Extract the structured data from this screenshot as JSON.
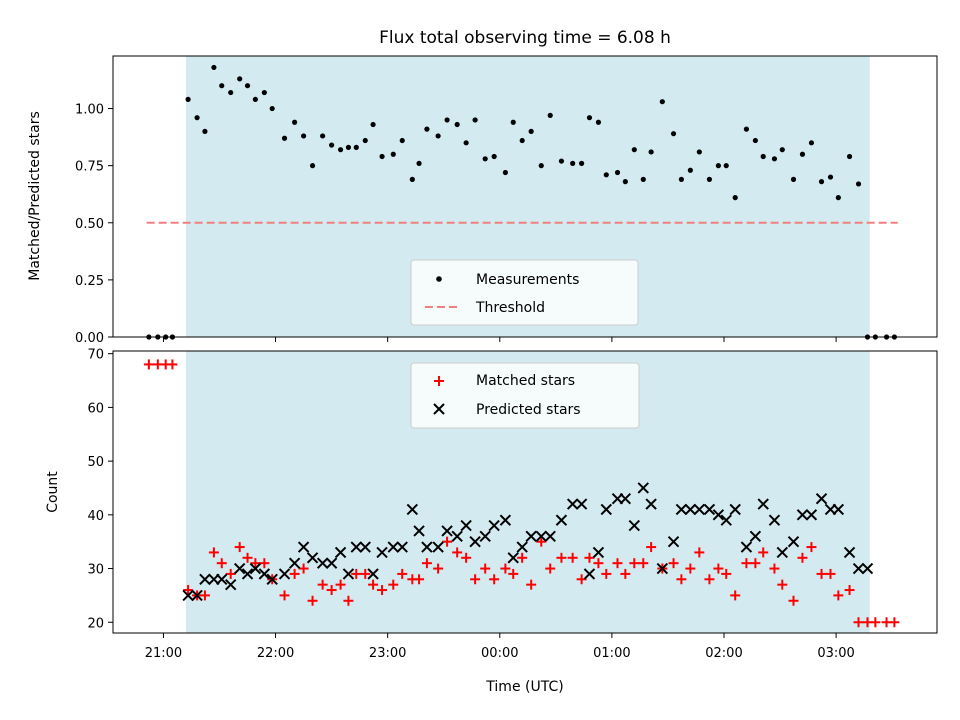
{
  "chart_data": [
    {
      "type": "scatter",
      "title": "Flux total observing time = 6.08 h",
      "ylabel": "Matched/Predicted stars",
      "xlabel": "",
      "ylim": [
        0,
        1.23
      ],
      "yticks": [
        "0.00",
        "0.25",
        "0.50",
        "0.75",
        "1.00"
      ],
      "xticks_hours": [
        21,
        22,
        23,
        24,
        25,
        26,
        27
      ],
      "xlim_hours": [
        20.55,
        27.9
      ],
      "observing_window_hours": [
        21.2,
        27.3
      ],
      "shade_color": "#d3eaf0",
      "threshold": {
        "name": "Threshold",
        "value": 0.5,
        "x_range_hours": [
          20.85,
          27.55
        ],
        "color": "#f08080"
      },
      "legend": [
        "Measurements",
        "Threshold"
      ],
      "legend_position": "lower-center",
      "series": [
        {
          "name": "Measurements",
          "color": "#000000",
          "x_hours": [
            20.87,
            20.95,
            21.02,
            21.08,
            21.22,
            21.3,
            21.37,
            21.45,
            21.52,
            21.6,
            21.68,
            21.75,
            21.82,
            21.9,
            21.97,
            22.08,
            22.17,
            22.25,
            22.33,
            22.42,
            22.5,
            22.58,
            22.65,
            22.72,
            22.8,
            22.87,
            22.95,
            23.05,
            23.13,
            23.22,
            23.28,
            23.35,
            23.45,
            23.53,
            23.62,
            23.7,
            23.78,
            23.87,
            23.95,
            24.05,
            24.12,
            24.2,
            24.28,
            24.37,
            24.45,
            24.55,
            24.65,
            24.73,
            24.8,
            24.88,
            24.95,
            25.05,
            25.12,
            25.2,
            25.28,
            25.35,
            25.45,
            25.55,
            25.62,
            25.7,
            25.78,
            25.87,
            25.95,
            26.02,
            26.1,
            26.2,
            26.28,
            26.35,
            26.45,
            26.52,
            26.62,
            26.7,
            26.78,
            26.87,
            26.95,
            27.02,
            27.12,
            27.2,
            27.28,
            27.35,
            27.45,
            27.52
          ],
          "y": [
            0,
            0,
            0,
            0,
            1.04,
            0.96,
            0.9,
            1.18,
            1.1,
            1.07,
            1.13,
            1.1,
            1.04,
            1.07,
            1.0,
            0.87,
            0.94,
            0.88,
            0.75,
            0.88,
            0.84,
            0.82,
            0.83,
            0.83,
            0.86,
            0.93,
            0.79,
            0.8,
            0.86,
            0.69,
            0.76,
            0.91,
            0.88,
            0.95,
            0.93,
            0.85,
            0.95,
            0.78,
            0.79,
            0.72,
            0.94,
            0.86,
            0.9,
            0.75,
            0.97,
            0.77,
            0.76,
            0.76,
            0.96,
            0.94,
            0.71,
            0.72,
            0.68,
            0.82,
            0.69,
            0.81,
            1.03,
            0.89,
            0.69,
            0.73,
            0.81,
            0.69,
            0.75,
            0.75,
            0.61,
            0.91,
            0.86,
            0.79,
            0.78,
            0.82,
            0.69,
            0.8,
            0.85,
            0.68,
            0.7,
            0.61,
            0.79,
            0.67,
            0,
            0,
            0,
            0
          ]
        }
      ]
    },
    {
      "type": "scatter",
      "title": "",
      "ylabel": "Count",
      "xlabel": "Time (UTC)",
      "ylim": [
        18,
        70.5
      ],
      "yticks": [
        "20",
        "30",
        "40",
        "50",
        "60",
        "70"
      ],
      "xticks": [
        "21:00",
        "22:00",
        "23:00",
        "00:00",
        "01:00",
        "02:00",
        "03:00"
      ],
      "xticks_hours": [
        21,
        22,
        23,
        24,
        25,
        26,
        27
      ],
      "xlim_hours": [
        20.55,
        27.9
      ],
      "observing_window_hours": [
        21.2,
        27.3
      ],
      "legend": [
        "Matched stars",
        "Predicted stars"
      ],
      "legend_position": "top-center",
      "series": [
        {
          "name": "Matched stars",
          "marker": "plus",
          "color": "#ff0000",
          "x_hours": [
            20.87,
            20.95,
            21.02,
            21.08,
            21.22,
            21.3,
            21.37,
            21.45,
            21.52,
            21.6,
            21.68,
            21.75,
            21.82,
            21.9,
            21.97,
            22.08,
            22.17,
            22.25,
            22.33,
            22.42,
            22.5,
            22.58,
            22.65,
            22.72,
            22.8,
            22.87,
            22.95,
            23.05,
            23.13,
            23.22,
            23.28,
            23.35,
            23.45,
            23.53,
            23.62,
            23.7,
            23.78,
            23.87,
            23.95,
            24.05,
            24.12,
            24.2,
            24.28,
            24.37,
            24.45,
            24.55,
            24.65,
            24.73,
            24.8,
            24.88,
            24.95,
            25.05,
            25.12,
            25.2,
            25.28,
            25.35,
            25.45,
            25.55,
            25.62,
            25.7,
            25.78,
            25.87,
            25.95,
            26.02,
            26.1,
            26.2,
            26.28,
            26.35,
            26.45,
            26.52,
            26.62,
            26.7,
            26.78,
            26.87,
            26.95,
            27.02,
            27.12,
            27.2,
            27.28,
            27.35,
            27.45,
            27.52
          ],
          "y": [
            68,
            68,
            68,
            68,
            26,
            25,
            25,
            33,
            31,
            29,
            34,
            32,
            31,
            31,
            28,
            25,
            29,
            30,
            24,
            27,
            26,
            27,
            24,
            29,
            29,
            27,
            26,
            27,
            29,
            28,
            28,
            31,
            30,
            35,
            33,
            32,
            28,
            30,
            28,
            30,
            29,
            32,
            27,
            35,
            30,
            32,
            32,
            28,
            32,
            31,
            29,
            31,
            29,
            31,
            31,
            34,
            30,
            31,
            28,
            30,
            33,
            28,
            30,
            29,
            25,
            31,
            31,
            33,
            30,
            27,
            24,
            32,
            34,
            29,
            29,
            25,
            26,
            20,
            20,
            20,
            20,
            20
          ]
        },
        {
          "name": "Predicted stars",
          "marker": "x",
          "color": "#000000",
          "x_hours": [
            21.22,
            21.3,
            21.37,
            21.45,
            21.52,
            21.6,
            21.68,
            21.75,
            21.82,
            21.9,
            21.97,
            22.08,
            22.17,
            22.25,
            22.33,
            22.42,
            22.5,
            22.58,
            22.65,
            22.72,
            22.8,
            22.87,
            22.95,
            23.05,
            23.13,
            23.22,
            23.28,
            23.35,
            23.45,
            23.53,
            23.62,
            23.7,
            23.78,
            23.87,
            23.95,
            24.05,
            24.12,
            24.2,
            24.28,
            24.37,
            24.45,
            24.55,
            24.65,
            24.73,
            24.8,
            24.88,
            24.95,
            25.05,
            25.12,
            25.2,
            25.28,
            25.35,
            25.45,
            25.55,
            25.62,
            25.7,
            25.78,
            25.87,
            25.95,
            26.02,
            26.1,
            26.2,
            26.28,
            26.35,
            26.45,
            26.52,
            26.62,
            26.7,
            26.78,
            26.87,
            26.95,
            27.02,
            27.12,
            27.2,
            27.28
          ],
          "y": [
            25,
            25,
            28,
            28,
            28,
            27,
            30,
            29,
            30,
            29,
            28,
            29,
            31,
            34,
            32,
            31,
            31,
            33,
            29,
            34,
            34,
            29,
            33,
            34,
            34,
            41,
            37,
            34,
            34,
            37,
            36,
            38,
            35,
            36,
            38,
            39,
            32,
            34,
            36,
            36,
            36,
            39,
            42,
            42,
            29,
            33,
            41,
            43,
            43,
            38,
            45,
            42,
            30,
            35,
            41,
            41,
            41,
            41,
            40,
            39,
            41,
            34,
            36,
            42,
            39,
            33,
            35,
            40,
            40,
            43,
            41,
            41,
            33,
            30,
            30
          ]
        }
      ]
    }
  ]
}
